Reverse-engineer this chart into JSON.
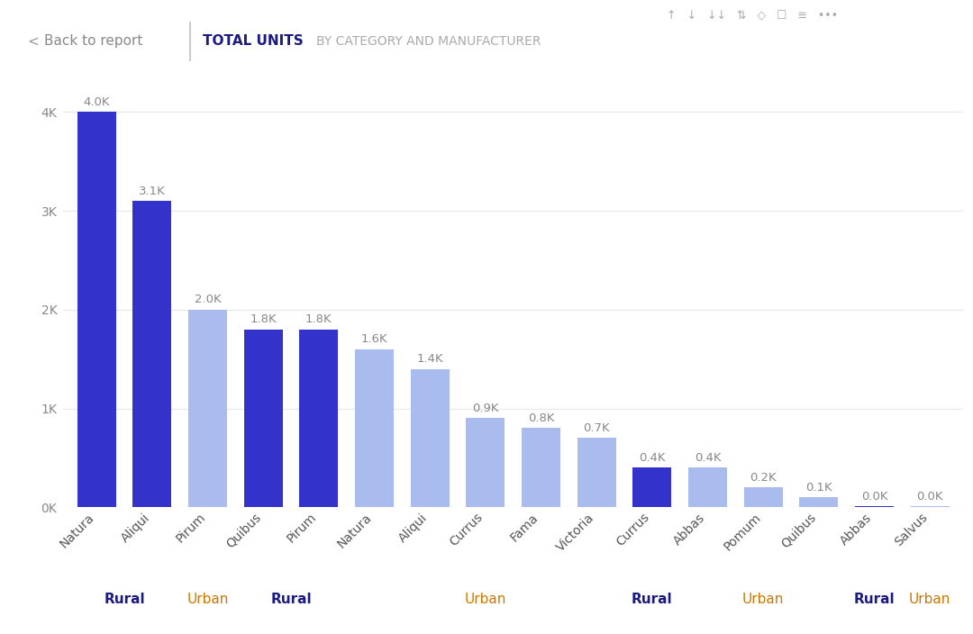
{
  "bars": [
    {
      "label": "Natura",
      "value": 4000,
      "category": "Rural",
      "color": "#3333cc"
    },
    {
      "label": "Aliqui",
      "value": 3100,
      "category": "Rural",
      "color": "#3333cc"
    },
    {
      "label": "Pirum",
      "value": 2000,
      "category": "Urban",
      "color": "#aabbee"
    },
    {
      "label": "Quibus",
      "value": 1800,
      "category": "Rural",
      "color": "#3333cc"
    },
    {
      "label": "Pirum",
      "value": 1800,
      "category": "Rural",
      "color": "#3333cc"
    },
    {
      "label": "Natura",
      "value": 1600,
      "category": "Urban",
      "color": "#aabbee"
    },
    {
      "label": "Aliqui",
      "value": 1400,
      "category": "Urban",
      "color": "#aabbee"
    },
    {
      "label": "Currus",
      "value": 900,
      "category": "Urban",
      "color": "#aabbee"
    },
    {
      "label": "Fama",
      "value": 800,
      "category": "Urban",
      "color": "#aabbee"
    },
    {
      "label": "Victoria",
      "value": 700,
      "category": "Urban",
      "color": "#aabbee"
    },
    {
      "label": "Currus",
      "value": 400,
      "category": "Rural",
      "color": "#3333cc"
    },
    {
      "label": "Abbas",
      "value": 400,
      "category": "Urban",
      "color": "#aabbee"
    },
    {
      "label": "Pomum",
      "value": 200,
      "category": "Urban",
      "color": "#aabbee"
    },
    {
      "label": "Quibus",
      "value": 100,
      "category": "Urban",
      "color": "#aabbee"
    },
    {
      "label": "Abbas",
      "value": 10,
      "category": "Rural",
      "color": "#3333cc"
    },
    {
      "label": "Salvus",
      "value": 10,
      "category": "Urban",
      "color": "#aabbee"
    }
  ],
  "category_groups": [
    {
      "name": "Rural",
      "start": 0,
      "end": 1,
      "color": "#1a1a80",
      "fontweight": "bold"
    },
    {
      "name": "Urban",
      "start": 2,
      "end": 2,
      "color": "#cc7700",
      "fontweight": "normal"
    },
    {
      "name": "Rural",
      "start": 3,
      "end": 4,
      "color": "#1a1a80",
      "fontweight": "bold"
    },
    {
      "name": "Urban",
      "start": 5,
      "end": 9,
      "color": "#cc7700",
      "fontweight": "normal"
    },
    {
      "name": "Rural",
      "start": 10,
      "end": 10,
      "color": "#1a1a80",
      "fontweight": "bold"
    },
    {
      "name": "Urban",
      "start": 11,
      "end": 13,
      "color": "#cc7700",
      "fontweight": "normal"
    },
    {
      "name": "Rural",
      "start": 14,
      "end": 14,
      "color": "#1a1a80",
      "fontweight": "bold"
    },
    {
      "name": "Urban",
      "start": 15,
      "end": 15,
      "color": "#cc7700",
      "fontweight": "normal"
    }
  ],
  "ylim": [
    0,
    4300
  ],
  "yticks": [
    0,
    1000,
    2000,
    3000,
    4000
  ],
  "ytick_labels": [
    "0K",
    "1K",
    "2K",
    "3K",
    "4K"
  ],
  "bg_color": "#ffffff",
  "grid_color": "#e8e8e8",
  "bar_label_color": "#888888",
  "bar_label_fontsize": 9.5,
  "tick_label_fontsize": 10,
  "category_fontsize": 11,
  "header_text": "TOTAL UNITS",
  "subheader_text": "BY CATEGORY AND MANUFACTURER",
  "back_text": "<  Back to report",
  "ytick_color": "#888888",
  "xtick_color": "#555555"
}
